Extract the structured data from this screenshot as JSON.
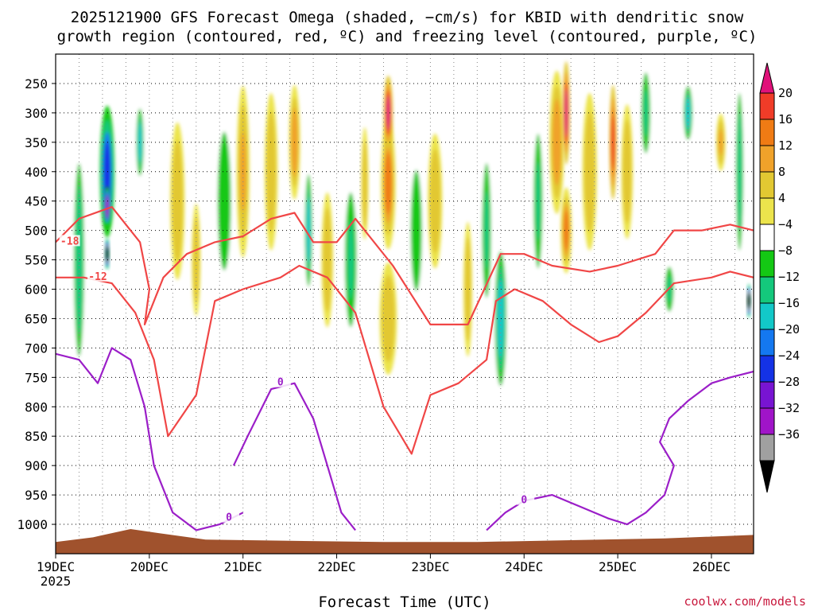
{
  "chart_data": {
    "type": "heatmap",
    "title_line1": "2025121900 GFS Forecast Omega (shaded, −cm/s) for KBID with dendritic snow",
    "title_line2": "growth region (contoured, red, ºC) and freezing level (contoured, purple, ºC)",
    "xlabel": "Forecast Time (UTC)",
    "credit": "coolwx.com/models",
    "x_ticks": [
      {
        "label": "19DEC",
        "day": 0,
        "sub": "2025"
      },
      {
        "label": "20DEC",
        "day": 1
      },
      {
        "label": "21DEC",
        "day": 2
      },
      {
        "label": "22DEC",
        "day": 3
      },
      {
        "label": "23DEC",
        "day": 4
      },
      {
        "label": "24DEC",
        "day": 5
      },
      {
        "label": "25DEC",
        "day": 6
      },
      {
        "label": "26DEC",
        "day": 7
      }
    ],
    "x_range_days": [
      0,
      7.45
    ],
    "y_range_hpa": [
      200,
      1050
    ],
    "y_ticks": [
      250,
      300,
      350,
      400,
      450,
      500,
      550,
      600,
      650,
      700,
      750,
      800,
      850,
      900,
      950,
      1000
    ],
    "colorbar": {
      "ticks": [
        "20",
        "16",
        "12",
        "8",
        "4",
        "−4",
        "−8",
        "−12",
        "−16",
        "−20",
        "−24",
        "−28",
        "−32",
        "−36"
      ],
      "colors": [
        "#e0127a",
        "#f03c28",
        "#f07b14",
        "#f0a22a",
        "#e2c832",
        "#ece44c",
        "#ffffff",
        "#14c814",
        "#14c87c",
        "#12c8c8",
        "#1478f0",
        "#1432e6",
        "#7814d2",
        "#a014c8",
        "#a0a0a0",
        "#000000"
      ]
    },
    "colors": {
      "dgz": "#f04646",
      "freezing": "#9b1ec8",
      "terrain": "#a0522d"
    },
    "omega_blobs": [
      {
        "d": 0.55,
        "p": 400,
        "w": 0.08,
        "h": 230,
        "v": -20
      },
      {
        "d": 0.55,
        "p": 460,
        "w": 0.04,
        "h": 70,
        "v": -30
      },
      {
        "d": 0.55,
        "p": 540,
        "w": 0.025,
        "h": 55,
        "v": -40
      },
      {
        "d": 0.25,
        "p": 550,
        "w": 0.07,
        "h": 430,
        "v": -10
      },
      {
        "d": 0.9,
        "p": 350,
        "w": 0.05,
        "h": 150,
        "v": -14
      },
      {
        "d": 1.3,
        "p": 450,
        "w": 0.1,
        "h": 350,
        "v": 7
      },
      {
        "d": 1.5,
        "p": 550,
        "w": 0.06,
        "h": 250,
        "v": 6
      },
      {
        "d": 1.8,
        "p": 450,
        "w": 0.12,
        "h": 400,
        "v": -7
      },
      {
        "d": 2.0,
        "p": 400,
        "w": 0.07,
        "h": 300,
        "v": 9
      },
      {
        "d": 2.3,
        "p": 400,
        "w": 0.09,
        "h": 350,
        "v": 6
      },
      {
        "d": 2.55,
        "p": 350,
        "w": 0.06,
        "h": 200,
        "v": 10
      },
      {
        "d": 2.7,
        "p": 500,
        "w": 0.05,
        "h": 250,
        "v": -14
      },
      {
        "d": 2.9,
        "p": 550,
        "w": 0.08,
        "h": 300,
        "v": 6
      },
      {
        "d": 3.15,
        "p": 550,
        "w": 0.08,
        "h": 300,
        "v": -8
      },
      {
        "d": 3.3,
        "p": 420,
        "w": 0.05,
        "h": 250,
        "v": 5
      },
      {
        "d": 3.55,
        "p": 420,
        "w": 0.08,
        "h": 230,
        "v": 14
      },
      {
        "d": 3.55,
        "p": 300,
        "w": 0.05,
        "h": 130,
        "v": 20
      },
      {
        "d": 3.55,
        "p": 650,
        "w": 0.12,
        "h": 250,
        "v": 6
      },
      {
        "d": 3.85,
        "p": 500,
        "w": 0.1,
        "h": 350,
        "v": -7
      },
      {
        "d": 4.05,
        "p": 450,
        "w": 0.1,
        "h": 300,
        "v": 6
      },
      {
        "d": 4.4,
        "p": 600,
        "w": 0.06,
        "h": 300,
        "v": 5
      },
      {
        "d": 4.75,
        "p": 650,
        "w": 0.08,
        "h": 300,
        "v": -12
      },
      {
        "d": 4.6,
        "p": 500,
        "w": 0.06,
        "h": 300,
        "v": -8
      },
      {
        "d": 5.15,
        "p": 450,
        "w": 0.06,
        "h": 300,
        "v": -8
      },
      {
        "d": 5.35,
        "p": 350,
        "w": 0.08,
        "h": 250,
        "v": 11
      },
      {
        "d": 5.45,
        "p": 300,
        "w": 0.04,
        "h": 180,
        "v": 20
      },
      {
        "d": 5.45,
        "p": 500,
        "w": 0.06,
        "h": 150,
        "v": 14
      },
      {
        "d": 5.7,
        "p": 400,
        "w": 0.1,
        "h": 350,
        "v": 7
      },
      {
        "d": 5.95,
        "p": 350,
        "w": 0.04,
        "h": 200,
        "v": 17
      },
      {
        "d": 6.1,
        "p": 400,
        "w": 0.08,
        "h": 300,
        "v": 6
      },
      {
        "d": 6.3,
        "p": 300,
        "w": 0.06,
        "h": 180,
        "v": -8
      },
      {
        "d": 6.55,
        "p": 600,
        "w": 0.06,
        "h": 100,
        "v": -9
      },
      {
        "d": 6.75,
        "p": 300,
        "w": 0.06,
        "h": 120,
        "v": -12
      },
      {
        "d": 7.1,
        "p": 350,
        "w": 0.05,
        "h": 100,
        "v": 8
      },
      {
        "d": 7.3,
        "p": 400,
        "w": 0.05,
        "h": 350,
        "v": -10
      },
      {
        "d": 7.4,
        "p": 620,
        "w": 0.02,
        "h": 60,
        "v": -40
      }
    ],
    "dgz_contours": [
      {
        "label": "-18",
        "label_at": {
          "d": 0.15,
          "p": 520
        },
        "points": [
          [
            0,
            520
          ],
          [
            0.25,
            480
          ],
          [
            0.6,
            460
          ],
          [
            0.9,
            520
          ],
          [
            1.0,
            600
          ],
          [
            0.95,
            660
          ],
          [
            1.15,
            580
          ],
          [
            1.4,
            540
          ],
          [
            1.7,
            520
          ],
          [
            2.0,
            510
          ],
          [
            2.3,
            480
          ],
          [
            2.55,
            470
          ],
          [
            2.75,
            520
          ],
          [
            3.0,
            520
          ],
          [
            3.2,
            480
          ],
          [
            3.6,
            560
          ],
          [
            4.0,
            660
          ],
          [
            4.4,
            660
          ],
          [
            4.75,
            540
          ],
          [
            5.0,
            540
          ],
          [
            5.3,
            560
          ],
          [
            5.7,
            570
          ],
          [
            6.0,
            560
          ],
          [
            6.4,
            540
          ],
          [
            6.6,
            500
          ],
          [
            6.9,
            500
          ],
          [
            7.2,
            490
          ],
          [
            7.45,
            500
          ]
        ]
      },
      {
        "label": "-12",
        "label_at": {
          "d": 0.45,
          "p": 580
        },
        "points": [
          [
            0,
            580
          ],
          [
            0.3,
            580
          ],
          [
            0.6,
            590
          ],
          [
            0.85,
            640
          ],
          [
            1.05,
            720
          ],
          [
            1.2,
            850
          ],
          [
            1.5,
            780
          ],
          [
            1.7,
            620
          ],
          [
            2.0,
            600
          ],
          [
            2.4,
            580
          ],
          [
            2.6,
            560
          ],
          [
            2.9,
            580
          ],
          [
            3.2,
            640
          ],
          [
            3.5,
            800
          ],
          [
            3.8,
            880
          ],
          [
            4.0,
            780
          ],
          [
            4.3,
            760
          ],
          [
            4.6,
            720
          ],
          [
            4.7,
            620
          ],
          [
            4.9,
            600
          ],
          [
            5.2,
            620
          ],
          [
            5.5,
            660
          ],
          [
            5.8,
            690
          ],
          [
            6.0,
            680
          ],
          [
            6.3,
            640
          ],
          [
            6.6,
            590
          ],
          [
            7.0,
            580
          ],
          [
            7.2,
            570
          ],
          [
            7.45,
            580
          ]
        ]
      }
    ],
    "freezing_contours": [
      {
        "label": "0",
        "label_at": {
          "d": 1.85,
          "p": 990
        },
        "points": [
          [
            0,
            710
          ],
          [
            0.25,
            720
          ],
          [
            0.45,
            760
          ],
          [
            0.6,
            700
          ],
          [
            0.8,
            720
          ],
          [
            0.95,
            800
          ],
          [
            1.05,
            900
          ],
          [
            1.25,
            980
          ],
          [
            1.5,
            1010
          ],
          [
            1.75,
            1000
          ],
          [
            2.0,
            980
          ]
        ]
      },
      {
        "label": "0",
        "label_at": {
          "d": 2.4,
          "p": 760
        },
        "points": [
          [
            1.9,
            900
          ],
          [
            2.05,
            850
          ],
          [
            2.3,
            770
          ],
          [
            2.55,
            760
          ],
          [
            2.75,
            820
          ],
          [
            2.9,
            900
          ],
          [
            3.05,
            980
          ],
          [
            3.2,
            1010
          ]
        ]
      },
      {
        "label": "0",
        "label_at": {
          "d": 5.0,
          "p": 960
        },
        "points": [
          [
            4.6,
            1010
          ],
          [
            4.8,
            980
          ],
          [
            5.0,
            960
          ],
          [
            5.3,
            950
          ],
          [
            5.6,
            970
          ],
          [
            5.9,
            990
          ],
          [
            6.1,
            1000
          ],
          [
            6.3,
            980
          ],
          [
            6.5,
            950
          ],
          [
            6.6,
            900
          ],
          [
            6.45,
            860
          ],
          [
            6.55,
            820
          ],
          [
            6.75,
            790
          ],
          [
            7.0,
            760
          ],
          [
            7.2,
            750
          ],
          [
            7.45,
            740
          ]
        ]
      }
    ],
    "terrain_top_hpa": [
      {
        "d": 0.0,
        "p": 1030
      },
      {
        "d": 0.4,
        "p": 1022
      },
      {
        "d": 0.8,
        "p": 1008
      },
      {
        "d": 1.1,
        "p": 1015
      },
      {
        "d": 1.6,
        "p": 1026
      },
      {
        "d": 2.5,
        "p": 1028
      },
      {
        "d": 3.5,
        "p": 1030
      },
      {
        "d": 4.5,
        "p": 1030
      },
      {
        "d": 5.5,
        "p": 1027
      },
      {
        "d": 6.5,
        "p": 1024
      },
      {
        "d": 7.45,
        "p": 1018
      }
    ]
  }
}
